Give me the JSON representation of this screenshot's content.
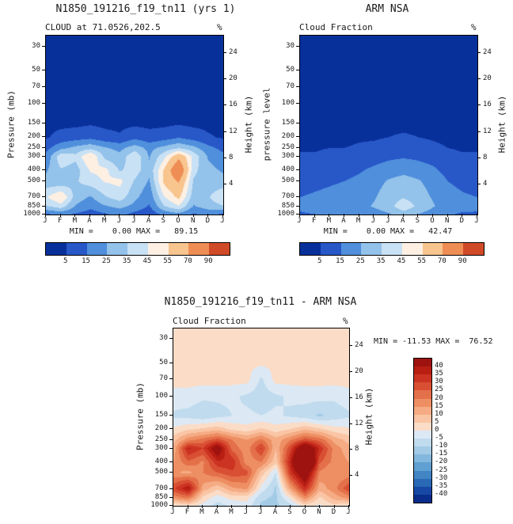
{
  "figure": {
    "background": "#ffffff"
  },
  "chart_data": [
    {
      "type": "heatmap",
      "title": "N1850_191216_f19_tn11 (yrs 1)",
      "subtitle": "CLOUD at 71.0526,202.5",
      "units_label": "%",
      "y_axis_label": "Pressure (mb)",
      "y2_axis_label": "Height (km)",
      "x_tick_labels": [
        "J",
        "F",
        "M",
        "A",
        "M",
        "J",
        "J",
        "A",
        "S",
        "O",
        "N",
        "D",
        "J"
      ],
      "y_tick_labels": [
        "30",
        "50",
        "70",
        "100",
        "150",
        "200",
        "250",
        "300",
        "400",
        "500",
        "700",
        "850",
        "1000"
      ],
      "y_tick_pressures": [
        30,
        50,
        70,
        100,
        150,
        200,
        250,
        300,
        400,
        500,
        700,
        850,
        1000
      ],
      "y2_tick_labels": [
        "24",
        "20",
        "16",
        "12",
        "8",
        "4"
      ],
      "y_range_mb": [
        24,
        1000
      ],
      "stats_label": "MIN =    0.00 MAX =   89.15",
      "min": 0.0,
      "max": 89.15,
      "contour_levels": [
        5,
        15,
        25,
        35,
        45,
        55,
        70,
        90
      ],
      "palette": [
        "#08309b",
        "#2857c8",
        "#4f8fdc",
        "#93c2ea",
        "#c9e1f4",
        "#fdf0e3",
        "#f8c58f",
        "#ee8e54",
        "#d04a28"
      ],
      "colorbar_labels": [
        "5",
        "15",
        "25",
        "35",
        "45",
        "55",
        "70",
        "90"
      ],
      "pressures": [
        30,
        50,
        70,
        100,
        150,
        200,
        250,
        300,
        400,
        500,
        700,
        850,
        1000
      ],
      "values": [
        [
          1,
          1,
          1,
          1,
          1,
          1,
          1,
          1,
          1,
          1,
          1,
          1,
          1
        ],
        [
          1,
          1,
          1,
          1,
          1,
          1,
          1,
          1,
          1,
          1,
          1,
          1,
          1
        ],
        [
          1,
          1,
          1,
          2,
          1,
          1,
          1,
          1,
          1,
          1,
          1,
          1,
          1
        ],
        [
          2,
          2,
          2,
          2,
          2,
          2,
          2,
          2,
          2,
          2,
          2,
          2,
          2
        ],
        [
          3,
          3,
          3,
          4,
          3,
          3,
          3,
          3,
          3,
          4,
          3,
          3,
          3
        ],
        [
          4,
          8,
          10,
          12,
          8,
          6,
          12,
          8,
          10,
          14,
          10,
          6,
          4
        ],
        [
          12,
          22,
          28,
          32,
          26,
          22,
          30,
          22,
          28,
          34,
          28,
          18,
          12
        ],
        [
          18,
          42,
          38,
          56,
          32,
          28,
          44,
          24,
          42,
          66,
          42,
          24,
          18
        ],
        [
          24,
          34,
          30,
          46,
          48,
          34,
          40,
          28,
          56,
          88,
          38,
          28,
          24
        ],
        [
          28,
          26,
          34,
          40,
          46,
          48,
          34,
          24,
          58,
          72,
          34,
          28,
          28
        ],
        [
          44,
          56,
          30,
          24,
          34,
          40,
          28,
          18,
          44,
          58,
          30,
          34,
          44
        ],
        [
          34,
          40,
          24,
          18,
          24,
          28,
          22,
          14,
          34,
          44,
          24,
          30,
          34
        ],
        [
          14,
          18,
          14,
          10,
          14,
          18,
          12,
          8,
          18,
          22,
          14,
          18,
          14
        ]
      ]
    },
    {
      "type": "heatmap",
      "title": "ARM NSA",
      "subtitle": "Cloud Fraction",
      "units_label": "%",
      "y_axis_label": "pressure level",
      "y2_axis_label": "Height (km)",
      "x_tick_labels": [
        "J",
        "F",
        "M",
        "A",
        "M",
        "J",
        "J",
        "A",
        "S",
        "O",
        "N",
        "D",
        "J"
      ],
      "y_tick_labels": [
        "30",
        "50",
        "70",
        "100",
        "150",
        "200",
        "250",
        "300",
        "400",
        "500",
        "700",
        "850",
        "1000"
      ],
      "y_tick_pressures": [
        30,
        50,
        70,
        100,
        150,
        200,
        250,
        300,
        400,
        500,
        700,
        850,
        1000
      ],
      "y2_tick_labels": [
        "24",
        "20",
        "16",
        "12",
        "8",
        "4"
      ],
      "y_range_mb": [
        24,
        1000
      ],
      "stats_label": "MIN =    0.00 MAX =   42.47",
      "min": 0.0,
      "max": 42.47,
      "contour_levels": [
        5,
        15,
        25,
        35,
        45,
        55,
        70,
        90
      ],
      "palette": [
        "#08309b",
        "#2857c8",
        "#4f8fdc",
        "#93c2ea",
        "#c9e1f4",
        "#fdf0e3",
        "#f8c58f",
        "#ee8e54",
        "#d04a28"
      ],
      "colorbar_labels": [
        "5",
        "15",
        "25",
        "35",
        "45",
        "55",
        "70",
        "90"
      ],
      "pressures": [
        30,
        50,
        70,
        100,
        150,
        200,
        250,
        300,
        400,
        500,
        700,
        850,
        1000
      ],
      "values": [
        [
          1,
          1,
          1,
          1,
          1,
          1,
          1,
          1,
          1,
          1,
          1,
          1,
          1
        ],
        [
          1,
          1,
          1,
          1,
          1,
          1,
          1,
          1,
          1,
          1,
          1,
          1,
          1
        ],
        [
          1,
          1,
          1,
          1,
          1,
          1,
          1,
          1,
          1,
          1,
          1,
          1,
          1
        ],
        [
          1,
          1,
          1,
          1,
          1,
          1,
          2,
          2,
          2,
          1,
          1,
          1,
          1
        ],
        [
          2,
          2,
          2,
          2,
          2,
          2,
          3,
          3,
          3,
          2,
          2,
          2,
          2
        ],
        [
          3,
          3,
          3,
          3,
          4,
          4,
          5,
          6,
          5,
          4,
          3,
          3,
          3
        ],
        [
          4,
          4,
          5,
          5,
          6,
          7,
          9,
          10,
          9,
          7,
          5,
          4,
          4
        ],
        [
          6,
          6,
          8,
          8,
          9,
          11,
          13,
          14,
          13,
          11,
          8,
          6,
          6
        ],
        [
          9,
          10,
          11,
          12,
          14,
          17,
          20,
          22,
          20,
          17,
          12,
          10,
          9
        ],
        [
          12,
          13,
          14,
          15,
          17,
          21,
          26,
          29,
          26,
          21,
          15,
          13,
          12
        ],
        [
          15,
          16,
          17,
          18,
          20,
          24,
          30,
          34,
          30,
          24,
          18,
          16,
          15
        ],
        [
          17,
          19,
          20,
          21,
          22,
          26,
          31,
          42,
          33,
          26,
          20,
          18,
          17
        ],
        [
          14,
          15,
          16,
          17,
          18,
          20,
          24,
          30,
          25,
          20,
          16,
          14,
          14
        ]
      ]
    },
    {
      "type": "heatmap",
      "title": "N1850_191216_f19_tn11 - ARM NSA",
      "subtitle": "Cloud Fraction",
      "units_label": "%",
      "y_axis_label": "Pressure (mb)",
      "y2_axis_label": "Height (km)",
      "x_tick_labels": [
        "J",
        "F",
        "M",
        "A",
        "M",
        "J",
        "J",
        "A",
        "S",
        "O",
        "N",
        "D",
        "J"
      ],
      "y_tick_labels": [
        "30",
        "50",
        "70",
        "100",
        "150",
        "200",
        "250",
        "300",
        "400",
        "500",
        "700",
        "850",
        "1000"
      ],
      "y_tick_pressures": [
        30,
        50,
        70,
        100,
        150,
        200,
        250,
        300,
        400,
        500,
        700,
        850,
        1000
      ],
      "y2_tick_labels": [
        "24",
        "20",
        "16",
        "12",
        "8",
        "4"
      ],
      "y_range_mb": [
        24,
        1000
      ],
      "stats_label": "MIN = -11.53 MAX =  76.52",
      "min": -11.53,
      "max": 76.52,
      "contour_levels": [
        -40,
        -35,
        -30,
        -25,
        -20,
        -15,
        -10,
        -5,
        0,
        5,
        10,
        15,
        20,
        25,
        30,
        35,
        40
      ],
      "palette": [
        "#0a2d8c",
        "#1748a5",
        "#2a69b5",
        "#4285c4",
        "#609fd1",
        "#82b8dd",
        "#a3cbe6",
        "#c1dbee",
        "#dce9f5",
        "#fbdcc7",
        "#f9c5a5",
        "#f5ab83",
        "#ee8e63",
        "#e4704a",
        "#d94f33",
        "#cc3322",
        "#b81e12",
        "#9e1310"
      ],
      "colorbar_labels": [
        "40",
        "35",
        "30",
        "25",
        "20",
        "15",
        "10",
        "5",
        "0",
        "-5",
        "-10",
        "-15",
        "-20",
        "-25",
        "-30",
        "-35",
        "-40"
      ],
      "pressures": [
        30,
        50,
        70,
        100,
        150,
        200,
        250,
        300,
        400,
        500,
        700,
        850,
        1000
      ],
      "values": [
        [
          1,
          1,
          1,
          1,
          1,
          1,
          1,
          1,
          1,
          1,
          1,
          1,
          1
        ],
        [
          1,
          1,
          1,
          2,
          1,
          1,
          1,
          1,
          1,
          1,
          1,
          1,
          1
        ],
        [
          2,
          2,
          2,
          2,
          2,
          2,
          -6,
          2,
          2,
          2,
          2,
          2,
          2
        ],
        [
          -2,
          -2,
          -4,
          -4,
          -4,
          -6,
          -8,
          -6,
          -4,
          -3,
          -3,
          -4,
          -2
        ],
        [
          -6,
          -7,
          -9,
          -7,
          -5,
          -4,
          -5,
          -4,
          -6,
          -8,
          -11,
          -8,
          -6
        ],
        [
          1,
          4,
          6,
          8,
          4,
          2,
          6,
          2,
          5,
          9,
          6,
          2,
          1
        ],
        [
          8,
          18,
          22,
          27,
          20,
          15,
          21,
          12,
          19,
          27,
          23,
          13,
          8
        ],
        [
          12,
          36,
          30,
          48,
          23,
          17,
          31,
          10,
          29,
          55,
          34,
          18,
          12
        ],
        [
          15,
          24,
          19,
          34,
          34,
          17,
          20,
          6,
          36,
          76,
          26,
          18,
          15
        ],
        [
          16,
          13,
          20,
          25,
          29,
          27,
          8,
          -5,
          32,
          51,
          19,
          15,
          16
        ],
        [
          29,
          40,
          13,
          6,
          14,
          16,
          -2,
          -11,
          14,
          34,
          12,
          18,
          29
        ],
        [
          17,
          21,
          4,
          -3,
          2,
          2,
          -9,
          -11,
          1,
          18,
          4,
          12,
          17
        ],
        [
          0,
          3,
          -2,
          -7,
          -4,
          -2,
          -11,
          -11,
          -7,
          3,
          -1,
          4,
          0
        ]
      ]
    }
  ]
}
